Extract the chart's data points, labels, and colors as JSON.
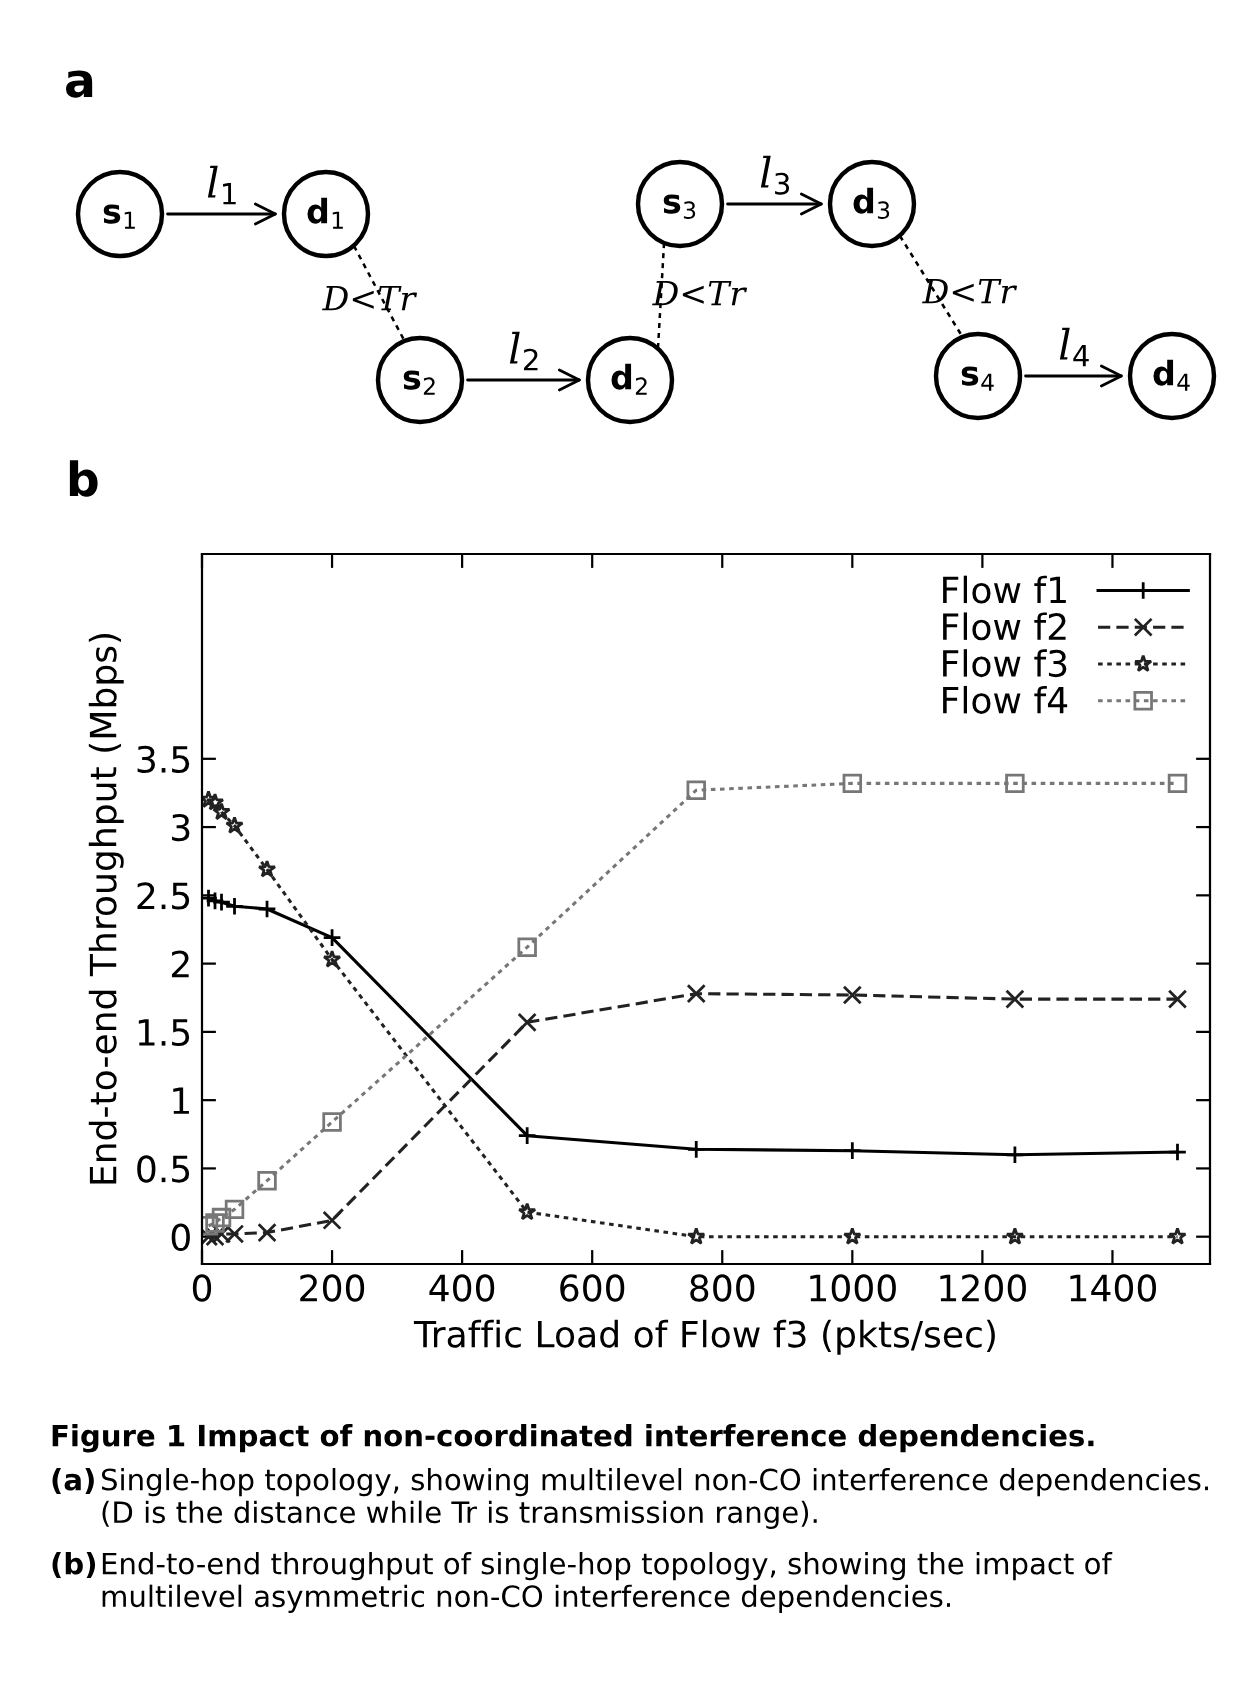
{
  "chart_data": [
    {
      "type": "other",
      "title": "a",
      "annotations": [
        "s$_{1}$",
        "d$_{1}$",
        "s$_{2}$",
        "d$_{2}$",
        "s$_{3}$",
        "d$_{3}$",
        "s$_{4}$",
        "d$_{4}$",
        "l$_{1}$",
        "l$_{2}$",
        "l$_{3}$",
        "l$_{4}$",
        "D<Tr",
        "D<Tr",
        "D<Tr"
      ]
    },
    {
      "type": "line",
      "title": "b",
      "xlabel": "Traffic Load of Flow f3 (pkts/sec)",
      "ylabel": "End-to-end Throughput (Mbps)",
      "x": [
        10,
        20,
        30,
        50,
        100,
        200,
        500,
        760,
        1000,
        1250,
        1500
      ],
      "series": [
        {
          "name": "Flow f1",
          "color": "#000000",
          "marker": "plus",
          "line_style": "solid",
          "values": [
            2.48,
            2.46,
            2.45,
            2.42,
            2.4,
            2.19,
            0.74,
            0.64,
            0.63,
            0.6,
            0.62
          ]
        },
        {
          "name": "Flow f2",
          "color": "#222222",
          "marker": "cross",
          "line_style": "dashed",
          "values": [
            0.0,
            0.0,
            0.02,
            0.02,
            0.03,
            0.12,
            1.57,
            1.78,
            1.77,
            1.74,
            1.74
          ]
        },
        {
          "name": "Flow f3",
          "color": "#222222",
          "marker": "star",
          "line_style": "dotted",
          "values": [
            3.2,
            3.18,
            3.11,
            3.01,
            2.69,
            2.03,
            0.18,
            0.0,
            0.0,
            0.0,
            0.0
          ]
        },
        {
          "name": "Flow f4",
          "color": "#777777",
          "marker": "square",
          "line_style": "dotted",
          "values": [
            0.08,
            0.1,
            0.14,
            0.2,
            0.41,
            0.84,
            2.12,
            3.27,
            3.32,
            3.32,
            3.32
          ]
        }
      ],
      "xlim": [
        0,
        1550
      ],
      "ylim": [
        -0.2,
        5
      ],
      "xticks": [
        0,
        200,
        400,
        600,
        800,
        1000,
        1200,
        1400
      ],
      "yticks": [
        0,
        0.5,
        1,
        1.5,
        2,
        2.5,
        3,
        3.5
      ],
      "grid": false,
      "legend": "top right",
      "annotations": [
        "Figure 1 Impact of non-coordinated interference dependencies.",
        "(a)",
        "Single-hop topology, showing multilevel non-CO interference dependencies. (D is the distance while Tr is transmission range).",
        "(b)",
        "End-to-end throughput of single-hop topology, showing the impact of multilevel asymmetric non-CO interference dependencies."
      ]
    }
  ]
}
